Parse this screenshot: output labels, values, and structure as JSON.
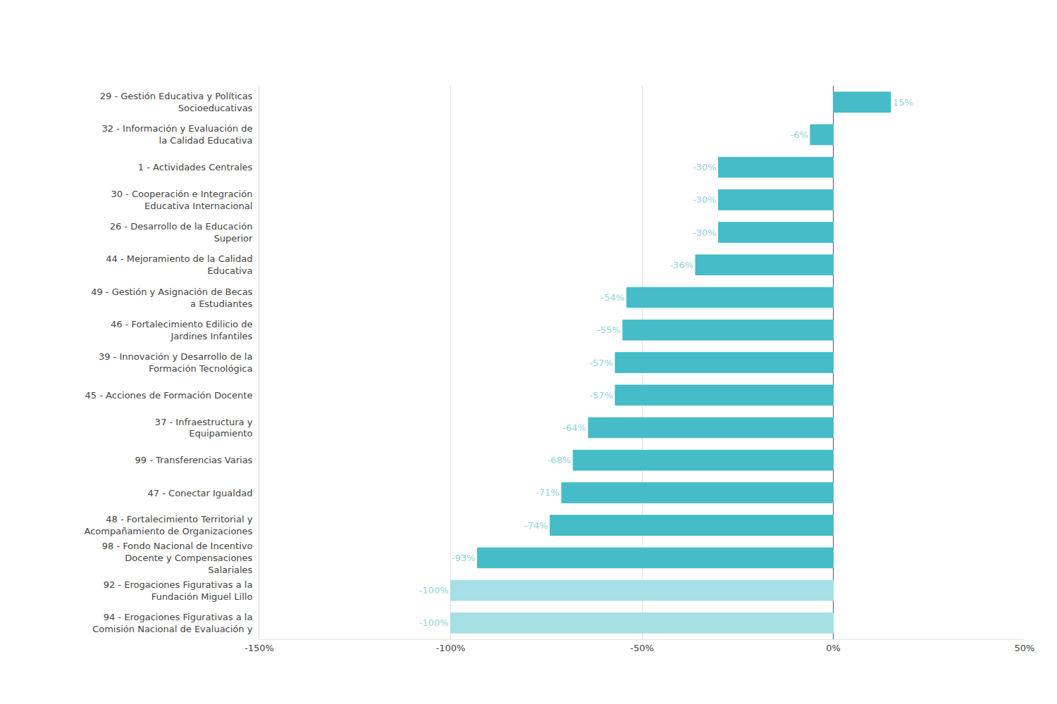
{
  "chart_data": {
    "type": "bar",
    "orientation": "horizontal",
    "categories": [
      "29 - Gestión Educativa y Políticas Socioeducativas",
      "32 - Información y Evaluación de la Calidad Educativa",
      "1 - Actividades Centrales",
      "30 - Cooperación e Integración Educativa Internacional",
      "26 - Desarrollo de la Educación Superior",
      "44 - Mejoramiento de la Calidad Educativa",
      "49 - Gestión y Asignación de Becas a Estudiantes",
      "46 - Fortalecimiento Edilicio de Jardines Infantiles",
      "39 - Innovación y Desarrollo de la Formación Tecnológica",
      "45 - Acciones de Formación Docente",
      "37 - Infraestructura y Equipamiento",
      "99 - Transferencias Varias",
      "47 - Conectar Igualdad",
      "48 - Fortalecimiento Territorial y Acompañamiento de Organizaciones",
      "98 - Fondo Nacional de Incentivo Docente y Compensaciones Salariales",
      "92 - Erogaciones Figurativas a la Fundación Miguel Lillo",
      "94 - Erogaciones Figurativas a la Comisión Nacional de Evaluación y"
    ],
    "values": [
      15,
      -6,
      -30,
      -30,
      -30,
      -36,
      -54,
      -55,
      -57,
      -57,
      -64,
      -68,
      -71,
      -74,
      -93,
      -100,
      -100
    ],
    "value_labels": [
      "15%",
      "-6%",
      "-30%",
      "-30%",
      "-30%",
      "-36%",
      "-54%",
      "-55%",
      "-57%",
      "-57%",
      "-64%",
      "-68%",
      "-71%",
      "-74%",
      "-93%",
      "-100%",
      "-100%"
    ],
    "data_labels": true,
    "colors": [
      "#45bcc8",
      "#45bcc8",
      "#45bcc8",
      "#45bcc8",
      "#45bcc8",
      "#45bcc8",
      "#45bcc8",
      "#45bcc8",
      "#45bcc8",
      "#45bcc8",
      "#45bcc8",
      "#45bcc8",
      "#45bcc8",
      "#45bcc8",
      "#45bcc8",
      "#a6dfe5",
      "#a6dfe5"
    ],
    "xlim": [
      -150,
      50
    ],
    "xticks": [
      {
        "value": -150,
        "label": "-150%"
      },
      {
        "value": -100,
        "label": "-100%"
      },
      {
        "value": -50,
        "label": "-50%"
      },
      {
        "value": 0,
        "label": "0%"
      },
      {
        "value": 50,
        "label": "50%"
      }
    ],
    "grid": true
  }
}
